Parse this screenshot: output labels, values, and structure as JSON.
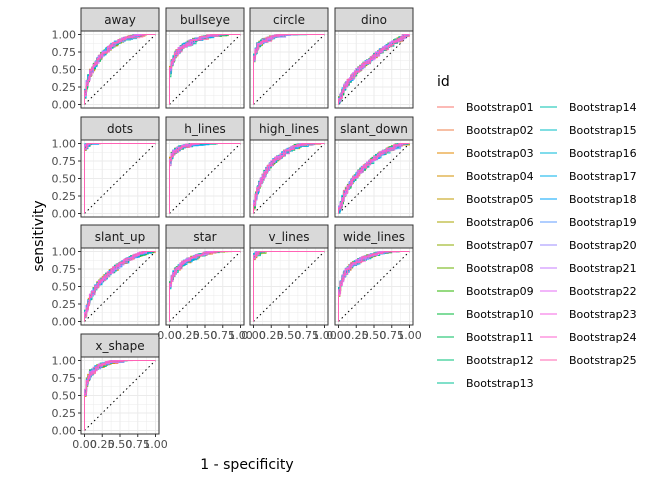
{
  "chart_data": {
    "type": "line",
    "xlabel": "1 - specificity",
    "ylabel": "sensitivity",
    "xlim": [
      0,
      1
    ],
    "ylim": [
      0,
      1
    ],
    "x_ticks": [
      "0.00",
      "0.25",
      "0.50",
      "0.75",
      "1.00"
    ],
    "y_ticks": [
      "0.00",
      "0.25",
      "0.50",
      "0.75",
      "1.00"
    ],
    "grid": true,
    "reference_line": "diagonal dotted y = x",
    "legend_title": "id",
    "legend_position": "right",
    "series_names": [
      "Bootstrap01",
      "Bootstrap02",
      "Bootstrap03",
      "Bootstrap04",
      "Bootstrap05",
      "Bootstrap06",
      "Bootstrap07",
      "Bootstrap08",
      "Bootstrap09",
      "Bootstrap10",
      "Bootstrap11",
      "Bootstrap12",
      "Bootstrap13",
      "Bootstrap14",
      "Bootstrap15",
      "Bootstrap16",
      "Bootstrap17",
      "Bootstrap18",
      "Bootstrap19",
      "Bootstrap20",
      "Bootstrap21",
      "Bootstrap22",
      "Bootstrap23",
      "Bootstrap24",
      "Bootstrap25"
    ],
    "series_colors": [
      "#F8766D",
      "#EF7F49",
      "#E38900",
      "#D39200",
      "#C09B00",
      "#A9A400",
      "#8EAB00",
      "#69B100",
      "#2BB600",
      "#00BA38",
      "#00BD5C",
      "#00C07A",
      "#00C096",
      "#00C0AF",
      "#00BDC5",
      "#00B8DA",
      "#00B1EB",
      "#00A6FB",
      "#619CFF",
      "#9E8DFF",
      "#C77CFF",
      "#E46EF5",
      "#F564E3",
      "#FE61CF",
      "#FF64B1"
    ],
    "facets": [
      {
        "name": "away",
        "curve": [
          [
            0,
            0
          ],
          [
            0.05,
            0.3
          ],
          [
            0.1,
            0.45
          ],
          [
            0.2,
            0.63
          ],
          [
            0.3,
            0.75
          ],
          [
            0.45,
            0.86
          ],
          [
            0.6,
            0.93
          ],
          [
            0.8,
            0.98
          ],
          [
            1,
            1
          ]
        ]
      },
      {
        "name": "bullseye",
        "curve": [
          [
            0,
            0
          ],
          [
            0.02,
            0.45
          ],
          [
            0.05,
            0.6
          ],
          [
            0.1,
            0.72
          ],
          [
            0.2,
            0.82
          ],
          [
            0.35,
            0.9
          ],
          [
            0.55,
            0.95
          ],
          [
            0.8,
            0.99
          ],
          [
            1,
            1
          ]
        ]
      },
      {
        "name": "circle",
        "curve": [
          [
            0,
            0
          ],
          [
            0.01,
            0.55
          ],
          [
            0.03,
            0.72
          ],
          [
            0.08,
            0.84
          ],
          [
            0.15,
            0.9
          ],
          [
            0.3,
            0.95
          ],
          [
            0.55,
            0.98
          ],
          [
            0.8,
            0.99
          ],
          [
            1,
            1
          ]
        ]
      },
      {
        "name": "dino",
        "curve": [
          [
            0,
            0
          ],
          [
            0.05,
            0.12
          ],
          [
            0.1,
            0.25
          ],
          [
            0.2,
            0.38
          ],
          [
            0.3,
            0.5
          ],
          [
            0.45,
            0.62
          ],
          [
            0.6,
            0.75
          ],
          [
            0.8,
            0.88
          ],
          [
            1,
            1
          ]
        ]
      },
      {
        "name": "dots",
        "curve": [
          [
            0,
            0
          ],
          [
            0.005,
            0.85
          ],
          [
            0.02,
            0.94
          ],
          [
            0.06,
            0.98
          ],
          [
            0.15,
            0.99
          ],
          [
            0.3,
            1
          ],
          [
            1,
            1
          ]
        ]
      },
      {
        "name": "h_lines",
        "curve": [
          [
            0,
            0
          ],
          [
            0.01,
            0.6
          ],
          [
            0.03,
            0.8
          ],
          [
            0.08,
            0.88
          ],
          [
            0.15,
            0.92
          ],
          [
            0.3,
            0.96
          ],
          [
            0.6,
            0.99
          ],
          [
            1,
            1
          ]
        ]
      },
      {
        "name": "high_lines",
        "curve": [
          [
            0,
            0
          ],
          [
            0.05,
            0.25
          ],
          [
            0.1,
            0.42
          ],
          [
            0.2,
            0.62
          ],
          [
            0.3,
            0.74
          ],
          [
            0.45,
            0.86
          ],
          [
            0.6,
            0.94
          ],
          [
            0.8,
            0.99
          ],
          [
            1,
            1
          ]
        ]
      },
      {
        "name": "slant_down",
        "curve": [
          [
            0,
            0
          ],
          [
            0.05,
            0.12
          ],
          [
            0.1,
            0.28
          ],
          [
            0.2,
            0.45
          ],
          [
            0.3,
            0.58
          ],
          [
            0.45,
            0.72
          ],
          [
            0.6,
            0.84
          ],
          [
            0.8,
            0.94
          ],
          [
            1,
            1
          ]
        ]
      },
      {
        "name": "slant_up",
        "curve": [
          [
            0,
            0
          ],
          [
            0.05,
            0.2
          ],
          [
            0.1,
            0.35
          ],
          [
            0.2,
            0.52
          ],
          [
            0.3,
            0.63
          ],
          [
            0.45,
            0.76
          ],
          [
            0.6,
            0.86
          ],
          [
            0.8,
            0.95
          ],
          [
            1,
            1
          ]
        ]
      },
      {
        "name": "star",
        "curve": [
          [
            0,
            0
          ],
          [
            0.02,
            0.5
          ],
          [
            0.05,
            0.62
          ],
          [
            0.1,
            0.72
          ],
          [
            0.2,
            0.82
          ],
          [
            0.35,
            0.9
          ],
          [
            0.55,
            0.96
          ],
          [
            0.8,
            0.99
          ],
          [
            1,
            1
          ]
        ]
      },
      {
        "name": "v_lines",
        "curve": [
          [
            0,
            0
          ],
          [
            0.005,
            0.8
          ],
          [
            0.02,
            0.92
          ],
          [
            0.06,
            0.97
          ],
          [
            0.15,
            0.99
          ],
          [
            0.3,
            1
          ],
          [
            1,
            1
          ]
        ]
      },
      {
        "name": "wide_lines",
        "curve": [
          [
            0,
            0
          ],
          [
            0.02,
            0.4
          ],
          [
            0.05,
            0.55
          ],
          [
            0.1,
            0.68
          ],
          [
            0.2,
            0.8
          ],
          [
            0.35,
            0.88
          ],
          [
            0.55,
            0.95
          ],
          [
            0.8,
            0.99
          ],
          [
            1,
            1
          ]
        ]
      },
      {
        "name": "x_shape",
        "curve": [
          [
            0,
            0
          ],
          [
            0.02,
            0.5
          ],
          [
            0.05,
            0.7
          ],
          [
            0.1,
            0.82
          ],
          [
            0.2,
            0.9
          ],
          [
            0.35,
            0.95
          ],
          [
            0.55,
            0.98
          ],
          [
            0.8,
            0.99
          ],
          [
            1,
            1
          ]
        ]
      }
    ]
  }
}
